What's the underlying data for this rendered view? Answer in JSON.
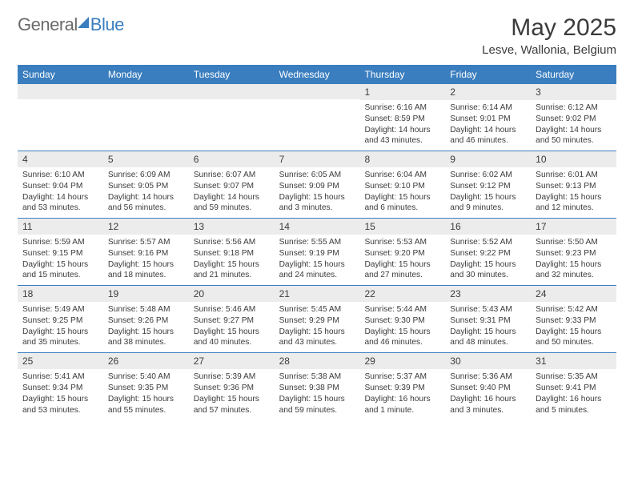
{
  "logo": {
    "text1": "General",
    "text2": "Blue"
  },
  "title": "May 2025",
  "location": "Lesve, Wallonia, Belgium",
  "colors": {
    "accent": "#3a7ebf",
    "header_text": "#ffffff",
    "cell_header_bg": "#ececec",
    "text": "#3b3b3b",
    "logo_gray": "#6b6b6b"
  },
  "day_headers": [
    "Sunday",
    "Monday",
    "Tuesday",
    "Wednesday",
    "Thursday",
    "Friday",
    "Saturday"
  ],
  "weeks": [
    [
      {
        "n": "",
        "sunrise": "",
        "sunset": "",
        "daylight": ""
      },
      {
        "n": "",
        "sunrise": "",
        "sunset": "",
        "daylight": ""
      },
      {
        "n": "",
        "sunrise": "",
        "sunset": "",
        "daylight": ""
      },
      {
        "n": "",
        "sunrise": "",
        "sunset": "",
        "daylight": ""
      },
      {
        "n": "1",
        "sunrise": "Sunrise: 6:16 AM",
        "sunset": "Sunset: 8:59 PM",
        "daylight": "Daylight: 14 hours and 43 minutes."
      },
      {
        "n": "2",
        "sunrise": "Sunrise: 6:14 AM",
        "sunset": "Sunset: 9:01 PM",
        "daylight": "Daylight: 14 hours and 46 minutes."
      },
      {
        "n": "3",
        "sunrise": "Sunrise: 6:12 AM",
        "sunset": "Sunset: 9:02 PM",
        "daylight": "Daylight: 14 hours and 50 minutes."
      }
    ],
    [
      {
        "n": "4",
        "sunrise": "Sunrise: 6:10 AM",
        "sunset": "Sunset: 9:04 PM",
        "daylight": "Daylight: 14 hours and 53 minutes."
      },
      {
        "n": "5",
        "sunrise": "Sunrise: 6:09 AM",
        "sunset": "Sunset: 9:05 PM",
        "daylight": "Daylight: 14 hours and 56 minutes."
      },
      {
        "n": "6",
        "sunrise": "Sunrise: 6:07 AM",
        "sunset": "Sunset: 9:07 PM",
        "daylight": "Daylight: 14 hours and 59 minutes."
      },
      {
        "n": "7",
        "sunrise": "Sunrise: 6:05 AM",
        "sunset": "Sunset: 9:09 PM",
        "daylight": "Daylight: 15 hours and 3 minutes."
      },
      {
        "n": "8",
        "sunrise": "Sunrise: 6:04 AM",
        "sunset": "Sunset: 9:10 PM",
        "daylight": "Daylight: 15 hours and 6 minutes."
      },
      {
        "n": "9",
        "sunrise": "Sunrise: 6:02 AM",
        "sunset": "Sunset: 9:12 PM",
        "daylight": "Daylight: 15 hours and 9 minutes."
      },
      {
        "n": "10",
        "sunrise": "Sunrise: 6:01 AM",
        "sunset": "Sunset: 9:13 PM",
        "daylight": "Daylight: 15 hours and 12 minutes."
      }
    ],
    [
      {
        "n": "11",
        "sunrise": "Sunrise: 5:59 AM",
        "sunset": "Sunset: 9:15 PM",
        "daylight": "Daylight: 15 hours and 15 minutes."
      },
      {
        "n": "12",
        "sunrise": "Sunrise: 5:57 AM",
        "sunset": "Sunset: 9:16 PM",
        "daylight": "Daylight: 15 hours and 18 minutes."
      },
      {
        "n": "13",
        "sunrise": "Sunrise: 5:56 AM",
        "sunset": "Sunset: 9:18 PM",
        "daylight": "Daylight: 15 hours and 21 minutes."
      },
      {
        "n": "14",
        "sunrise": "Sunrise: 5:55 AM",
        "sunset": "Sunset: 9:19 PM",
        "daylight": "Daylight: 15 hours and 24 minutes."
      },
      {
        "n": "15",
        "sunrise": "Sunrise: 5:53 AM",
        "sunset": "Sunset: 9:20 PM",
        "daylight": "Daylight: 15 hours and 27 minutes."
      },
      {
        "n": "16",
        "sunrise": "Sunrise: 5:52 AM",
        "sunset": "Sunset: 9:22 PM",
        "daylight": "Daylight: 15 hours and 30 minutes."
      },
      {
        "n": "17",
        "sunrise": "Sunrise: 5:50 AM",
        "sunset": "Sunset: 9:23 PM",
        "daylight": "Daylight: 15 hours and 32 minutes."
      }
    ],
    [
      {
        "n": "18",
        "sunrise": "Sunrise: 5:49 AM",
        "sunset": "Sunset: 9:25 PM",
        "daylight": "Daylight: 15 hours and 35 minutes."
      },
      {
        "n": "19",
        "sunrise": "Sunrise: 5:48 AM",
        "sunset": "Sunset: 9:26 PM",
        "daylight": "Daylight: 15 hours and 38 minutes."
      },
      {
        "n": "20",
        "sunrise": "Sunrise: 5:46 AM",
        "sunset": "Sunset: 9:27 PM",
        "daylight": "Daylight: 15 hours and 40 minutes."
      },
      {
        "n": "21",
        "sunrise": "Sunrise: 5:45 AM",
        "sunset": "Sunset: 9:29 PM",
        "daylight": "Daylight: 15 hours and 43 minutes."
      },
      {
        "n": "22",
        "sunrise": "Sunrise: 5:44 AM",
        "sunset": "Sunset: 9:30 PM",
        "daylight": "Daylight: 15 hours and 46 minutes."
      },
      {
        "n": "23",
        "sunrise": "Sunrise: 5:43 AM",
        "sunset": "Sunset: 9:31 PM",
        "daylight": "Daylight: 15 hours and 48 minutes."
      },
      {
        "n": "24",
        "sunrise": "Sunrise: 5:42 AM",
        "sunset": "Sunset: 9:33 PM",
        "daylight": "Daylight: 15 hours and 50 minutes."
      }
    ],
    [
      {
        "n": "25",
        "sunrise": "Sunrise: 5:41 AM",
        "sunset": "Sunset: 9:34 PM",
        "daylight": "Daylight: 15 hours and 53 minutes."
      },
      {
        "n": "26",
        "sunrise": "Sunrise: 5:40 AM",
        "sunset": "Sunset: 9:35 PM",
        "daylight": "Daylight: 15 hours and 55 minutes."
      },
      {
        "n": "27",
        "sunrise": "Sunrise: 5:39 AM",
        "sunset": "Sunset: 9:36 PM",
        "daylight": "Daylight: 15 hours and 57 minutes."
      },
      {
        "n": "28",
        "sunrise": "Sunrise: 5:38 AM",
        "sunset": "Sunset: 9:38 PM",
        "daylight": "Daylight: 15 hours and 59 minutes."
      },
      {
        "n": "29",
        "sunrise": "Sunrise: 5:37 AM",
        "sunset": "Sunset: 9:39 PM",
        "daylight": "Daylight: 16 hours and 1 minute."
      },
      {
        "n": "30",
        "sunrise": "Sunrise: 5:36 AM",
        "sunset": "Sunset: 9:40 PM",
        "daylight": "Daylight: 16 hours and 3 minutes."
      },
      {
        "n": "31",
        "sunrise": "Sunrise: 5:35 AM",
        "sunset": "Sunset: 9:41 PM",
        "daylight": "Daylight: 16 hours and 5 minutes."
      }
    ]
  ]
}
